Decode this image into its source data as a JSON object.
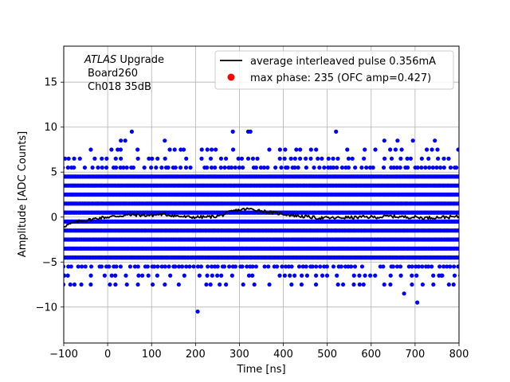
{
  "chart_data": {
    "type": "scatter",
    "title": "",
    "xlabel": "Time [ns]",
    "ylabel": "Amplitude [ADC Counts]",
    "xlim": [
      -100,
      800
    ],
    "ylim": [
      -14,
      19
    ],
    "xticks": [
      -100,
      0,
      100,
      200,
      300,
      400,
      500,
      600,
      700,
      800
    ],
    "yticks": [
      -10,
      -5,
      0,
      5,
      10,
      15
    ],
    "grid": true,
    "legend_position": "top-right",
    "annotation": {
      "line1_italic": "ATLAS",
      "line1_rest": " Upgrade",
      "line2": "Board260",
      "line3": "Ch018 35dB"
    },
    "colors": {
      "samples": "#0000ff",
      "average": "#000000",
      "max_phase": "#ff0000"
    },
    "sample_band_levels": [
      -5.5,
      -4.5,
      -3.5,
      -2.5,
      -1.5,
      -0.5,
      0.5,
      1.5,
      2.5,
      3.5,
      4.5,
      5.5
    ],
    "sample_sparse_levels": [
      -7.5,
      -6.5,
      6.5,
      7.5
    ],
    "outliers": [
      {
        "x": -85,
        "y": -7.5
      },
      {
        "x": -60,
        "y": -7.5
      },
      {
        "x": 205,
        "y": -10.5
      },
      {
        "x": 255,
        "y": -7.5
      },
      {
        "x": 675,
        "y": -8.5
      },
      {
        "x": 705,
        "y": -9.5
      },
      {
        "x": 55,
        "y": 9.5
      },
      {
        "x": 130,
        "y": 8.5
      },
      {
        "x": 285,
        "y": 9.5
      },
      {
        "x": 320,
        "y": 9.5
      },
      {
        "x": 325,
        "y": 9.5
      },
      {
        "x": 520,
        "y": 9.5
      },
      {
        "x": 630,
        "y": 8.5
      },
      {
        "x": 660,
        "y": 8.5
      },
      {
        "x": 695,
        "y": 8.5
      },
      {
        "x": 30,
        "y": 8.5
      },
      {
        "x": 40,
        "y": 8.5
      },
      {
        "x": 745,
        "y": 8.5
      },
      {
        "x": 760,
        "y": -6.5
      },
      {
        "x": 790,
        "y": -6.5
      }
    ],
    "average_pulse": [
      [
        -100,
        -1.0
      ],
      [
        -80,
        -0.7
      ],
      [
        -60,
        -0.4
      ],
      [
        -40,
        -0.3
      ],
      [
        -20,
        -0.1
      ],
      [
        0,
        0.0
      ],
      [
        20,
        0.1
      ],
      [
        40,
        0.2
      ],
      [
        60,
        0.25
      ],
      [
        80,
        0.2
      ],
      [
        100,
        0.2
      ],
      [
        120,
        0.3
      ],
      [
        140,
        0.25
      ],
      [
        160,
        0.1
      ],
      [
        180,
        0.0
      ],
      [
        200,
        0.0
      ],
      [
        220,
        0.0
      ],
      [
        240,
        0.05
      ],
      [
        260,
        0.2
      ],
      [
        280,
        0.6
      ],
      [
        300,
        0.8
      ],
      [
        320,
        0.9
      ],
      [
        340,
        0.8
      ],
      [
        360,
        0.6
      ],
      [
        380,
        0.45
      ],
      [
        400,
        0.35
      ],
      [
        420,
        0.2
      ],
      [
        440,
        0.1
      ],
      [
        460,
        0.0
      ],
      [
        480,
        -0.1
      ],
      [
        500,
        -0.1
      ],
      [
        520,
        -0.1
      ],
      [
        540,
        -0.05
      ],
      [
        560,
        -0.05
      ],
      [
        580,
        0.0
      ],
      [
        600,
        0.0
      ],
      [
        620,
        0.0
      ],
      [
        640,
        0.1
      ],
      [
        660,
        0.05
      ],
      [
        680,
        0.0
      ],
      [
        700,
        0.0
      ],
      [
        720,
        -0.1
      ],
      [
        740,
        -0.05
      ],
      [
        760,
        0.0
      ],
      [
        780,
        0.0
      ],
      [
        800,
        0.05
      ]
    ],
    "series": [
      {
        "name": "average interleaved pulse 0.356mA",
        "style": "line"
      },
      {
        "name": "max phase: 235 (OFC amp=0.427)",
        "style": "marker"
      }
    ]
  }
}
